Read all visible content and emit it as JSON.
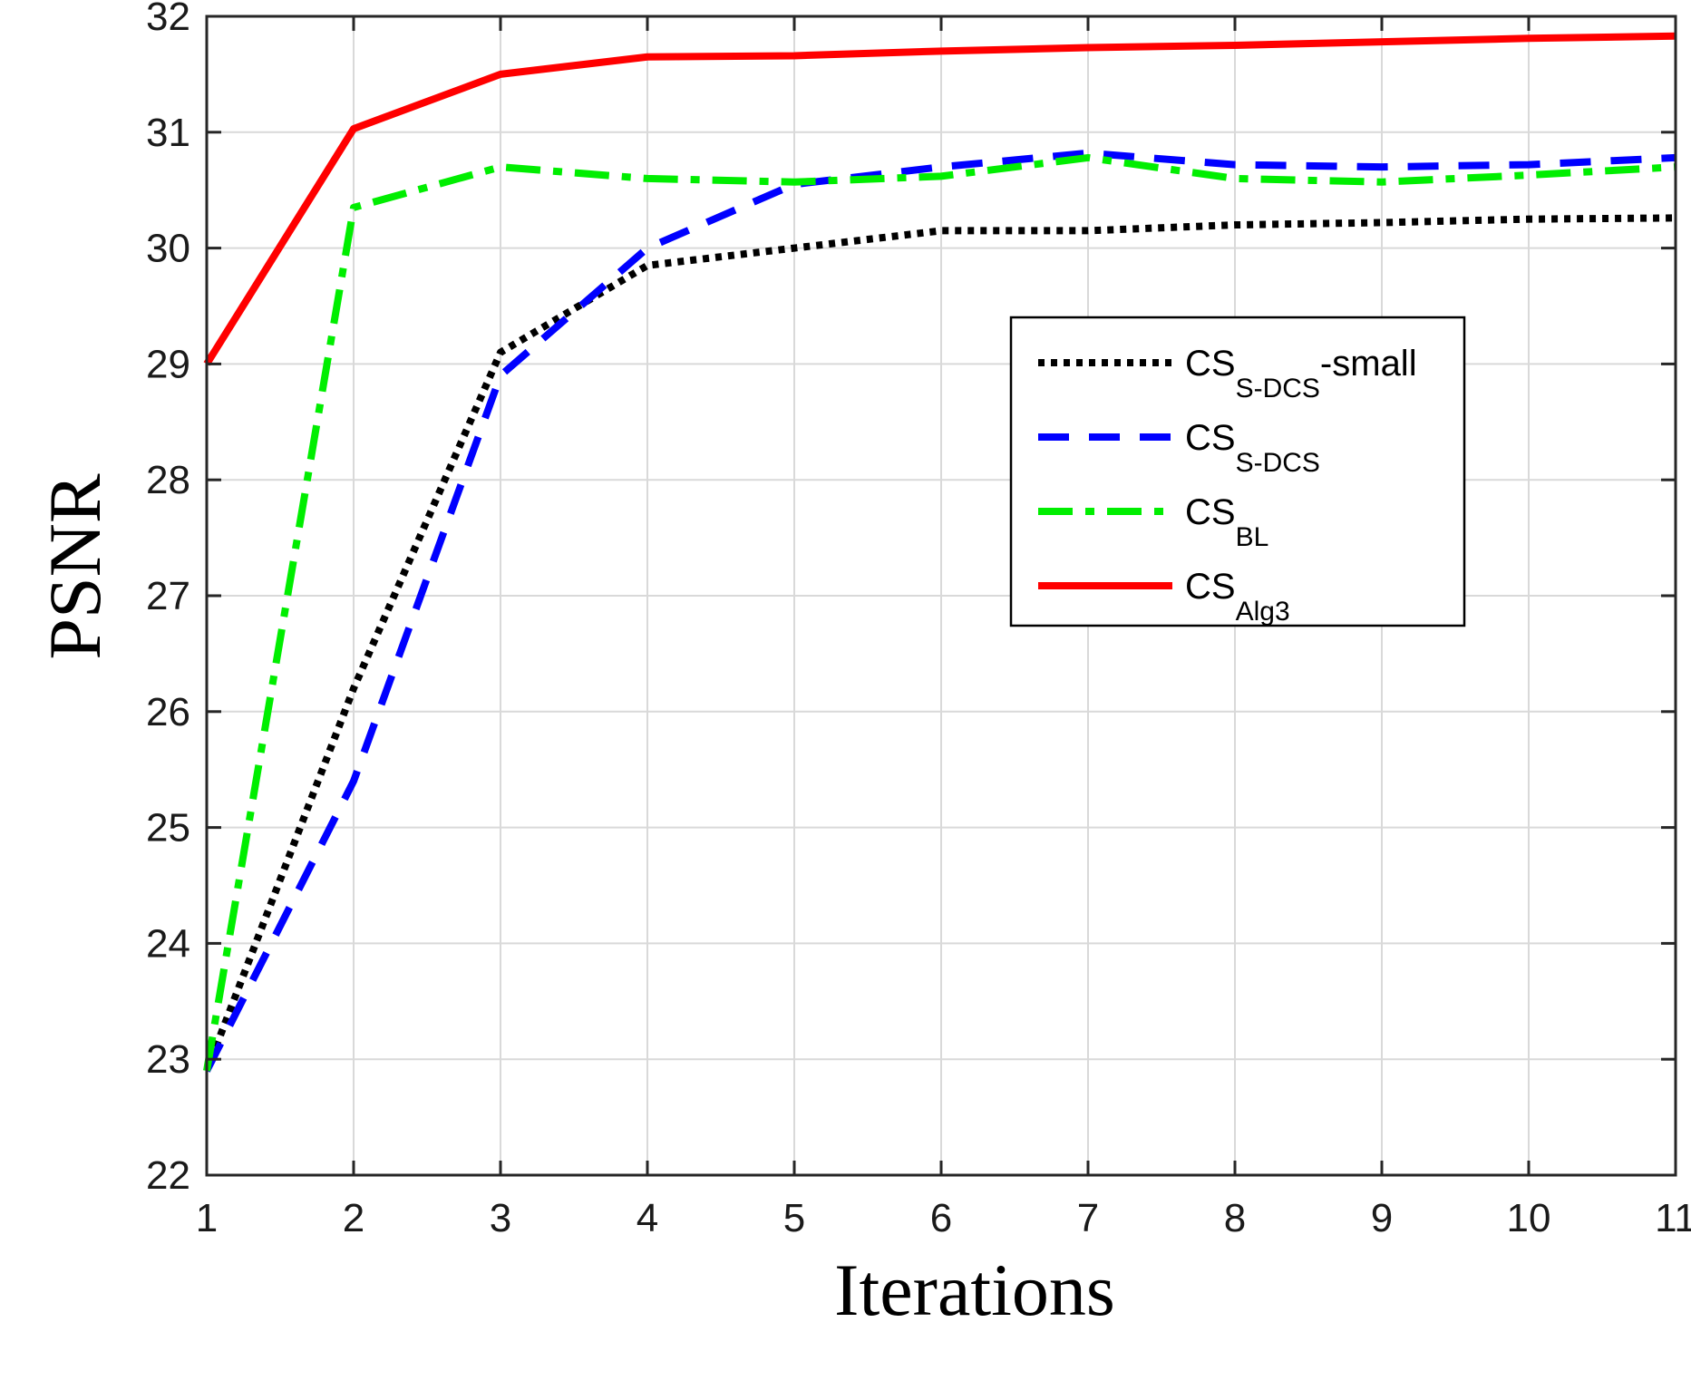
{
  "colors": {
    "grid": "#d9d9d9",
    "axis": "#262626",
    "background": "#ffffff"
  },
  "chart_data": {
    "type": "line",
    "title": "",
    "xlabel": "Iterations",
    "ylabel": "PSNR",
    "xlim": [
      1,
      11
    ],
    "ylim": [
      22,
      32
    ],
    "x_ticks": [
      "1",
      "2",
      "3",
      "4",
      "5",
      "6",
      "7",
      "8",
      "9",
      "10",
      "11"
    ],
    "y_ticks": [
      "22",
      "23",
      "24",
      "25",
      "26",
      "27",
      "28",
      "29",
      "30",
      "31",
      "32"
    ],
    "grid": true,
    "legend_position": "right, upper-middle",
    "x": [
      1,
      2,
      3,
      4,
      5,
      6,
      7,
      8,
      9,
      10,
      11
    ],
    "series": [
      {
        "name": "CS",
        "subscript": "S-DCS",
        "suffix": "-small",
        "color": "#000000",
        "style": "dotted",
        "values": [
          22.9,
          26.2,
          29.1,
          29.85,
          30.0,
          30.15,
          30.15,
          30.2,
          30.22,
          30.25,
          30.26
        ]
      },
      {
        "name": "CS",
        "subscript": "S-DCS",
        "suffix": "",
        "color": "#0000ff",
        "style": "dashed",
        "values": [
          22.9,
          25.4,
          28.9,
          30.0,
          30.55,
          30.7,
          30.82,
          30.72,
          30.7,
          30.72,
          30.78
        ]
      },
      {
        "name": "CS",
        "subscript": "BL",
        "suffix": "",
        "color": "#00ee00",
        "style": "dashdot",
        "values": [
          22.9,
          30.35,
          30.7,
          30.6,
          30.57,
          30.62,
          30.78,
          30.6,
          30.57,
          30.63,
          30.7
        ]
      },
      {
        "name": "CS",
        "subscript": "Alg3",
        "suffix": "",
        "color": "#ff0000",
        "style": "solid",
        "values": [
          29.0,
          31.03,
          31.5,
          31.65,
          31.66,
          31.7,
          31.73,
          31.75,
          31.78,
          31.81,
          31.83
        ]
      }
    ]
  }
}
